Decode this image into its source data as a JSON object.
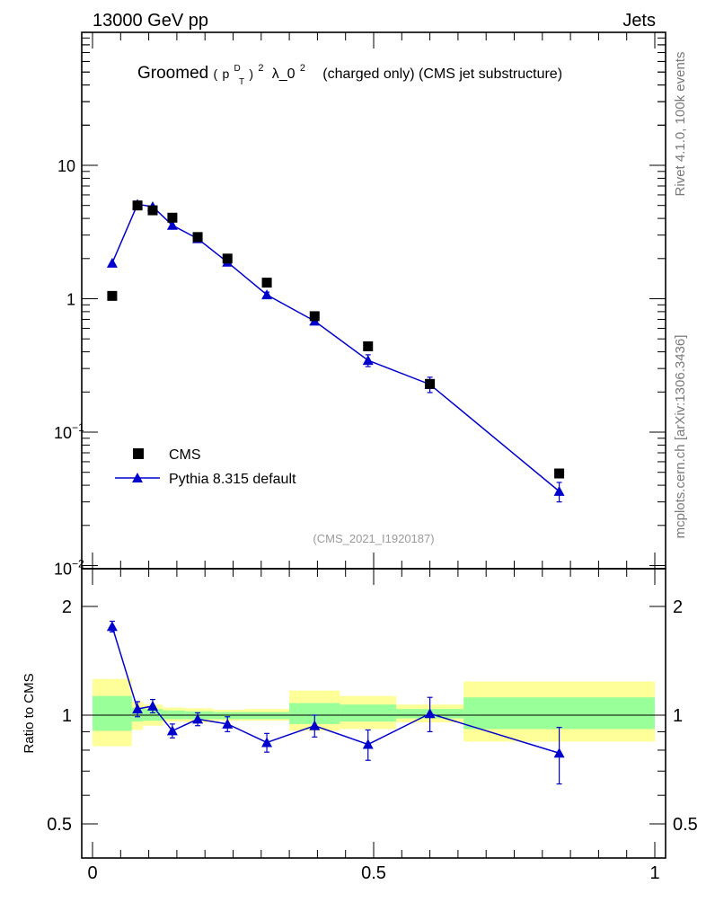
{
  "header": {
    "left": "13000 GeV pp",
    "right": "Jets"
  },
  "side_text": {
    "version": "Rivet 4.1.0,  100k events",
    "source": "mcplots.cern.ch [arXiv:1306.3436]"
  },
  "chart_data": [
    {
      "type": "scatter",
      "panel": "main",
      "title": "Groomed (p_T^D)^2 λ_0^2 (charged only) (CMS jet substructure)",
      "title_parts": {
        "pre": "Groomed",
        "p": "p",
        "sup_d": "D",
        "sub_t": "T",
        "sq": "2",
        "post": "λ_0",
        "post_sup": "2",
        "tail": "(charged only) (CMS jet substructure)"
      },
      "watermark": "(CMS_2021_I1920187)",
      "yscale": "log",
      "ylim": [
        0.01,
        80
      ],
      "xlim": [
        0,
        1
      ],
      "ytick_values": [
        10,
        1,
        0.1,
        0.01
      ],
      "ytick_labels": [
        {
          "base": "10",
          "exp": ""
        },
        {
          "base": "1",
          "exp": ""
        },
        {
          "base": "10",
          "exp": "−1"
        },
        {
          "base": "10",
          "exp": "−2"
        }
      ],
      "legend_position": "lower-left",
      "series": [
        {
          "name": "CMS",
          "marker": "square",
          "color": "#000000",
          "x": [
            0.035,
            0.08,
            0.107,
            0.142,
            0.187,
            0.24,
            0.31,
            0.395,
            0.49,
            0.6,
            0.83
          ],
          "y": [
            1.05,
            5.0,
            4.6,
            4.05,
            2.9,
            2.0,
            1.32,
            0.74,
            0.44,
            0.23,
            0.049
          ]
        },
        {
          "name": "Pythia 8.315 default",
          "marker": "triangle",
          "color": "#0000cc",
          "x": [
            0.035,
            0.08,
            0.107,
            0.142,
            0.187,
            0.24,
            0.31,
            0.395,
            0.49,
            0.6,
            0.83
          ],
          "y": [
            1.85,
            5.1,
            4.9,
            3.55,
            2.82,
            1.88,
            1.07,
            0.68,
            0.345,
            0.228,
            0.036
          ],
          "yerr": [
            0.08,
            0.15,
            0.12,
            0.1,
            0.08,
            0.06,
            0.05,
            0.04,
            0.035,
            0.03,
            0.006
          ]
        }
      ]
    },
    {
      "type": "scatter",
      "panel": "ratio",
      "ylabel": "Ratio to CMS",
      "yscale": "log",
      "ylim": [
        0.4,
        2.5
      ],
      "xlim": [
        0,
        1
      ],
      "ytick_values": [
        2,
        1,
        0.5
      ],
      "ytick_labels": [
        "2",
        "1",
        "0.5"
      ],
      "xtick_values": [
        0,
        0.5,
        1
      ],
      "xtick_labels": [
        "0",
        "0.5",
        "1"
      ],
      "bands": [
        {
          "x0": 0.0,
          "x1": 0.07,
          "inner": [
            0.905,
            1.13
          ],
          "outer": [
            0.82,
            1.26
          ]
        },
        {
          "x0": 0.07,
          "x1": 0.09,
          "inner": [
            0.96,
            1.05
          ],
          "outer": [
            0.91,
            1.09
          ]
        },
        {
          "x0": 0.09,
          "x1": 0.125,
          "inner": [
            0.965,
            1.04
          ],
          "outer": [
            0.935,
            1.07
          ]
        },
        {
          "x0": 0.125,
          "x1": 0.165,
          "inner": [
            0.975,
            1.03
          ],
          "outer": [
            0.96,
            1.05
          ]
        },
        {
          "x0": 0.165,
          "x1": 0.215,
          "inner": [
            0.975,
            1.025
          ],
          "outer": [
            0.955,
            1.045
          ]
        },
        {
          "x0": 0.215,
          "x1": 0.27,
          "inner": [
            0.975,
            1.02
          ],
          "outer": [
            0.965,
            1.035
          ]
        },
        {
          "x0": 0.27,
          "x1": 0.35,
          "inner": [
            0.975,
            1.02
          ],
          "outer": [
            0.965,
            1.04
          ]
        },
        {
          "x0": 0.35,
          "x1": 0.44,
          "inner": [
            0.945,
            1.08
          ],
          "outer": [
            0.905,
            1.17
          ]
        },
        {
          "x0": 0.44,
          "x1": 0.54,
          "inner": [
            0.96,
            1.07
          ],
          "outer": [
            0.915,
            1.13
          ]
        },
        {
          "x0": 0.54,
          "x1": 0.66,
          "inner": [
            0.98,
            1.04
          ],
          "outer": [
            0.955,
            1.07
          ]
        },
        {
          "x0": 0.66,
          "x1": 1.0,
          "inner": [
            0.915,
            1.12
          ],
          "outer": [
            0.845,
            1.24
          ]
        }
      ],
      "series": [
        {
          "name": "Pythia 8.315 default",
          "marker": "triangle",
          "color": "#0000cc",
          "x": [
            0.035,
            0.08,
            0.107,
            0.142,
            0.187,
            0.24,
            0.31,
            0.395,
            0.49,
            0.6,
            0.83
          ],
          "y": [
            1.76,
            1.04,
            1.06,
            0.905,
            0.975,
            0.945,
            0.84,
            0.935,
            0.83,
            1.01,
            0.785
          ],
          "yerr": [
            0.06,
            0.05,
            0.045,
            0.04,
            0.04,
            0.045,
            0.05,
            0.065,
            0.08,
            0.11,
            0.14
          ]
        }
      ]
    }
  ]
}
